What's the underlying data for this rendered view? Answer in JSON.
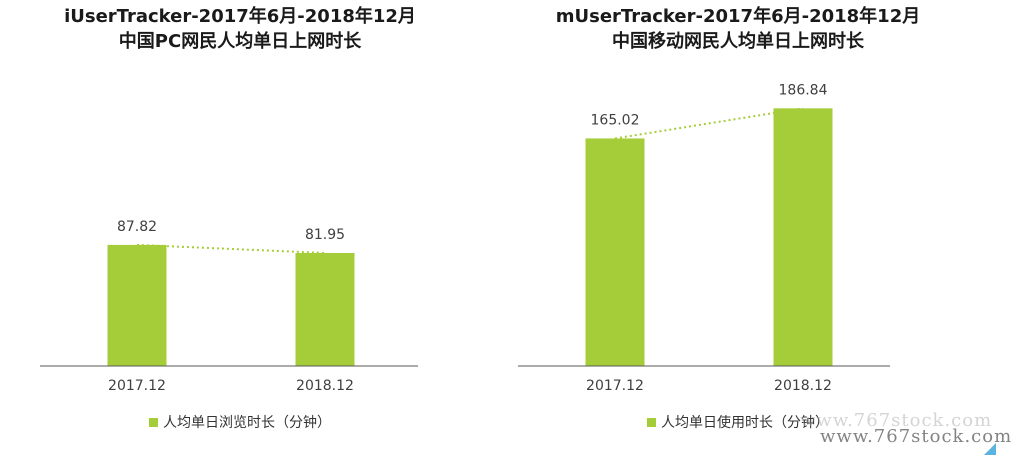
{
  "charts": [
    {
      "title_line1": "iUserTracker-2017年6月-2018年12月",
      "title_line2": "中国PC网民人均单日上网时长",
      "legend_label": "人均单日浏览时长（分钟）"
    },
    {
      "title_line1": "mUserTracker-2017年6月-2018年12月",
      "title_line2": "中国移动网民人均单日上网时长",
      "legend_label": "人均单日使用时长（分钟）"
    }
  ],
  "chart_data": [
    {
      "type": "bar",
      "categories": [
        "2017.12",
        "2018.12"
      ],
      "values": [
        87.82,
        81.95
      ],
      "value_labels": [
        "87.82",
        "81.95"
      ],
      "title": "iUserTracker-2017年6月-2018年12月 中国PC网民人均单日上网时长",
      "series": [
        {
          "name": "人均单日浏览时长（分钟）",
          "values": [
            87.82,
            81.95
          ]
        }
      ],
      "ylim": [
        0,
        200
      ],
      "trend_line": true,
      "legend_position": "bottom",
      "grid": false,
      "color": "#a5cd39"
    },
    {
      "type": "bar",
      "categories": [
        "2017.12",
        "2018.12"
      ],
      "values": [
        165.02,
        186.84
      ],
      "value_labels": [
        "165.02",
        "186.84"
      ],
      "title": "mUserTracker-2017年6月-2018年12月 中国移动网民人均单日上网时长",
      "series": [
        {
          "name": "人均单日使用时长（分钟）",
          "values": [
            165.02,
            186.84
          ]
        }
      ],
      "ylim": [
        0,
        200
      ],
      "trend_line": true,
      "legend_position": "bottom",
      "grid": false,
      "color": "#a5cd39"
    }
  ],
  "watermark": "www.767stock.com",
  "colors": {
    "bar": "#a5cd39",
    "trend": "#a5cd39",
    "axis": "#595959",
    "text": "#404040"
  }
}
